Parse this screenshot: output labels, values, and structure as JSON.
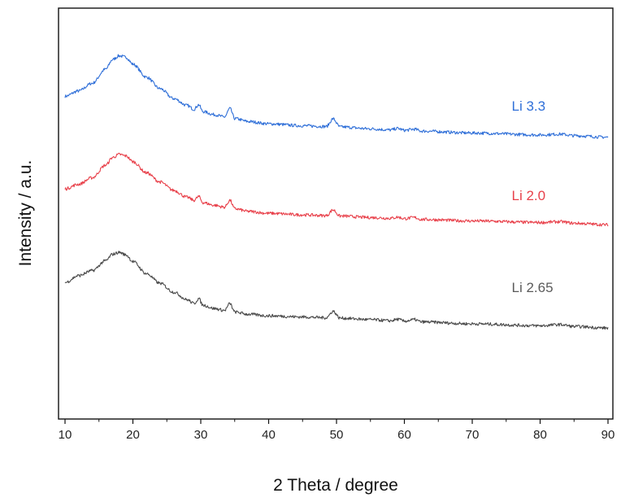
{
  "chart_data": {
    "type": "line",
    "title": "",
    "xlabel": "2 Theta / degree",
    "ylabel": "Intensity / a.u.",
    "xlim": [
      9.5,
      90.5
    ],
    "ylim": [
      0,
      1
    ],
    "x_ticks": [
      10,
      20,
      30,
      40,
      50,
      60,
      70,
      80,
      90
    ],
    "y_ticks_shown": false,
    "grid": false,
    "legend": "inline labels at right",
    "series": [
      {
        "name": "Li 3.3",
        "color": "#2f6fd8",
        "points": [
          [
            10,
            0.812
          ],
          [
            12,
            0.826
          ],
          [
            14,
            0.846
          ],
          [
            16,
            0.883
          ],
          [
            17,
            0.908
          ],
          [
            18,
            0.918
          ],
          [
            19,
            0.914
          ],
          [
            20,
            0.896
          ],
          [
            22,
            0.862
          ],
          [
            24,
            0.832
          ],
          [
            26,
            0.806
          ],
          [
            28,
            0.788
          ],
          [
            29,
            0.778
          ],
          [
            29.7,
            0.79
          ],
          [
            30.3,
            0.772
          ],
          [
            32,
            0.764
          ],
          [
            33.5,
            0.758
          ],
          [
            34.3,
            0.78
          ],
          [
            35,
            0.754
          ],
          [
            37,
            0.746
          ],
          [
            40,
            0.74
          ],
          [
            45,
            0.735
          ],
          [
            48.5,
            0.733
          ],
          [
            49.5,
            0.753
          ],
          [
            50.5,
            0.732
          ],
          [
            55,
            0.727
          ],
          [
            58,
            0.724
          ],
          [
            59,
            0.728
          ],
          [
            60,
            0.723
          ],
          [
            61.5,
            0.726
          ],
          [
            62.5,
            0.721
          ],
          [
            70,
            0.716
          ],
          [
            80,
            0.711
          ],
          [
            83,
            0.713
          ],
          [
            85,
            0.709
          ],
          [
            90,
            0.705
          ]
        ]
      },
      {
        "name": "Li 2.0",
        "color": "#e8404a",
        "points": [
          [
            10,
            0.57
          ],
          [
            12,
            0.582
          ],
          [
            14,
            0.599
          ],
          [
            16,
            0.632
          ],
          [
            17,
            0.652
          ],
          [
            18,
            0.66
          ],
          [
            19,
            0.656
          ],
          [
            20,
            0.641
          ],
          [
            22,
            0.612
          ],
          [
            24,
            0.588
          ],
          [
            26,
            0.566
          ],
          [
            28,
            0.548
          ],
          [
            29,
            0.54
          ],
          [
            29.7,
            0.55
          ],
          [
            30.3,
            0.534
          ],
          [
            32,
            0.527
          ],
          [
            33.5,
            0.522
          ],
          [
            34.3,
            0.54
          ],
          [
            35,
            0.518
          ],
          [
            37,
            0.511
          ],
          [
            40,
            0.506
          ],
          [
            45,
            0.502
          ],
          [
            48.5,
            0.5
          ],
          [
            49.5,
            0.515
          ],
          [
            50.5,
            0.499
          ],
          [
            55,
            0.495
          ],
          [
            58,
            0.493
          ],
          [
            59,
            0.496
          ],
          [
            60,
            0.492
          ],
          [
            61.5,
            0.495
          ],
          [
            62.5,
            0.49
          ],
          [
            70,
            0.486
          ],
          [
            80,
            0.482
          ],
          [
            83,
            0.484
          ],
          [
            85,
            0.48
          ],
          [
            90,
            0.476
          ]
        ]
      },
      {
        "name": "Li 2.65",
        "color": "#4a4a4a",
        "points": [
          [
            10,
            0.325
          ],
          [
            12,
            0.343
          ],
          [
            14,
            0.356
          ],
          [
            16,
            0.382
          ],
          [
            17,
            0.399
          ],
          [
            18,
            0.404
          ],
          [
            19,
            0.397
          ],
          [
            20,
            0.38
          ],
          [
            22,
            0.348
          ],
          [
            24,
            0.323
          ],
          [
            26,
            0.3
          ],
          [
            28,
            0.28
          ],
          [
            29,
            0.27
          ],
          [
            29.7,
            0.283
          ],
          [
            30.3,
            0.266
          ],
          [
            32,
            0.257
          ],
          [
            33.5,
            0.252
          ],
          [
            34.3,
            0.27
          ],
          [
            35,
            0.248
          ],
          [
            37,
            0.242
          ],
          [
            40,
            0.238
          ],
          [
            45,
            0.235
          ],
          [
            48.5,
            0.233
          ],
          [
            49.5,
            0.25
          ],
          [
            50.5,
            0.232
          ],
          [
            55,
            0.228
          ],
          [
            58,
            0.225
          ],
          [
            59,
            0.229
          ],
          [
            60,
            0.224
          ],
          [
            61.5,
            0.228
          ],
          [
            62.5,
            0.222
          ],
          [
            70,
            0.217
          ],
          [
            80,
            0.212
          ],
          [
            83,
            0.215
          ],
          [
            85,
            0.21
          ],
          [
            90,
            0.206
          ]
        ]
      }
    ],
    "annotations": [
      {
        "text": "Li 3.3",
        "color": "#2f6fd8",
        "x": 80,
        "y": 0.775
      },
      {
        "text": "Li 2.0",
        "color": "#e8404a",
        "x": 80,
        "y": 0.54
      },
      {
        "text": "Li 2.65",
        "color": "#5a5a5a",
        "x": 80,
        "y": 0.3
      }
    ]
  }
}
